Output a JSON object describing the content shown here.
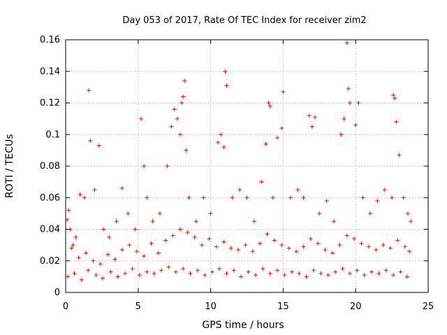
{
  "chart_data": {
    "type": "scatter",
    "title": "Day 053 of 2017, Rate Of TEC Index for receiver zim2",
    "xlabel": "GPS time / hours",
    "ylabel": "ROTI / TECUs",
    "xlim": [
      0,
      25
    ],
    "ylim": [
      0,
      0.16
    ],
    "xticks": [
      0,
      5,
      10,
      15,
      20,
      25
    ],
    "yticks": [
      0,
      0.02,
      0.04,
      0.06,
      0.08,
      0.1,
      0.12,
      0.14,
      0.16
    ],
    "xtick_labels": [
      "0",
      "5",
      "10",
      "15",
      "20",
      "25"
    ],
    "ytick_labels": [
      "0",
      "0.02",
      "0.04",
      "0.06",
      "0.08",
      "0.1",
      "0.12",
      "0.14",
      "0.16"
    ],
    "grid": true,
    "marker": "+",
    "color": "#ff0000",
    "series": [
      {
        "x": [
          0.1,
          0.2,
          0.3,
          0.5,
          0.7,
          1.0,
          1.3,
          1.6,
          1.7,
          2.0,
          2.3,
          2.6,
          3.0,
          3.5,
          3.9,
          4.3,
          4.8,
          5.2,
          5.4,
          5.6,
          6.0,
          6.5,
          7.0,
          7.3,
          7.5,
          7.7,
          7.9,
          8.0,
          8.1,
          8.2,
          8.3,
          8.5,
          9.0,
          9.5,
          10.0,
          10.5,
          10.7,
          10.9,
          11.0,
          11.1,
          11.5,
          12.0,
          12.5,
          13.0,
          13.5,
          13.8,
          14.0,
          14.1,
          14.3,
          14.6,
          14.9,
          15.0,
          15.5,
          16.0,
          16.4,
          16.8,
          17.0,
          17.2,
          17.5,
          18.0,
          18.5,
          19.0,
          19.2,
          19.4,
          19.5,
          19.6,
          20.0,
          20.2,
          20.5,
          21.0,
          21.5,
          22.0,
          22.5,
          22.6,
          22.7,
          22.8,
          23.0,
          23.3,
          23.6,
          23.8
        ],
        "y": [
          0.046,
          0.052,
          0.04,
          0.03,
          0.035,
          0.062,
          0.06,
          0.128,
          0.096,
          0.065,
          0.093,
          0.04,
          0.035,
          0.045,
          0.066,
          0.05,
          0.04,
          0.11,
          0.08,
          0.06,
          0.045,
          0.05,
          0.08,
          0.105,
          0.116,
          0.11,
          0.1,
          0.12,
          0.124,
          0.134,
          0.09,
          0.06,
          0.045,
          0.06,
          0.05,
          0.095,
          0.1,
          0.092,
          0.14,
          0.131,
          0.06,
          0.065,
          0.06,
          0.045,
          0.07,
          0.094,
          0.12,
          0.118,
          0.06,
          0.098,
          0.104,
          0.127,
          0.06,
          0.065,
          0.06,
          0.112,
          0.105,
          0.111,
          0.05,
          0.058,
          0.045,
          0.1,
          0.11,
          0.158,
          0.129,
          0.12,
          0.106,
          0.12,
          0.06,
          0.05,
          0.058,
          0.065,
          0.06,
          0.125,
          0.123,
          0.108,
          0.087,
          0.06,
          0.05,
          0.045
        ]
      },
      {
        "x": [
          0.4,
          0.9,
          1.4,
          1.9,
          2.4,
          2.9,
          3.4,
          3.9,
          4.4,
          4.9,
          5.4,
          5.9,
          6.4,
          6.9,
          7.4,
          7.9,
          8.4,
          8.9,
          9.4,
          9.9,
          10.4,
          10.9,
          11.4,
          11.9,
          12.4,
          12.9,
          13.4,
          13.9,
          14.4,
          14.9,
          15.4,
          15.9,
          16.4,
          16.9,
          17.4,
          17.9,
          18.4,
          18.9,
          19.4,
          19.9,
          20.4,
          20.9,
          21.4,
          21.9,
          22.4,
          22.9,
          23.4,
          23.7
        ],
        "y": [
          0.028,
          0.022,
          0.025,
          0.02,
          0.018,
          0.024,
          0.021,
          0.027,
          0.03,
          0.026,
          0.023,
          0.031,
          0.025,
          0.033,
          0.036,
          0.04,
          0.038,
          0.035,
          0.03,
          0.034,
          0.029,
          0.032,
          0.028,
          0.027,
          0.03,
          0.026,
          0.031,
          0.037,
          0.033,
          0.03,
          0.028,
          0.026,
          0.029,
          0.034,
          0.031,
          0.027,
          0.025,
          0.03,
          0.036,
          0.034,
          0.031,
          0.029,
          0.027,
          0.03,
          0.028,
          0.033,
          0.029,
          0.026
        ]
      },
      {
        "x": [
          0.15,
          0.6,
          1.1,
          1.55,
          2.1,
          2.55,
          3.1,
          3.6,
          4.1,
          4.6,
          5.1,
          5.6,
          6.1,
          6.6,
          7.1,
          7.6,
          8.1,
          8.6,
          9.1,
          9.6,
          10.1,
          10.6,
          11.1,
          11.6,
          12.1,
          12.6,
          13.1,
          13.6,
          14.1,
          14.6,
          15.1,
          15.6,
          16.1,
          16.6,
          17.1,
          17.6,
          18.1,
          18.6,
          19.1,
          19.6,
          20.1,
          20.6,
          21.1,
          21.6,
          22.1,
          22.6,
          23.1,
          23.55
        ],
        "y": [
          0.01,
          0.012,
          0.008,
          0.014,
          0.011,
          0.009,
          0.013,
          0.01,
          0.012,
          0.015,
          0.011,
          0.013,
          0.012,
          0.014,
          0.016,
          0.013,
          0.015,
          0.012,
          0.014,
          0.011,
          0.013,
          0.015,
          0.012,
          0.014,
          0.01,
          0.013,
          0.011,
          0.015,
          0.012,
          0.014,
          0.011,
          0.013,
          0.012,
          0.01,
          0.014,
          0.012,
          0.011,
          0.013,
          0.015,
          0.012,
          0.014,
          0.011,
          0.013,
          0.012,
          0.014,
          0.011,
          0.013,
          0.01
        ]
      }
    ]
  }
}
